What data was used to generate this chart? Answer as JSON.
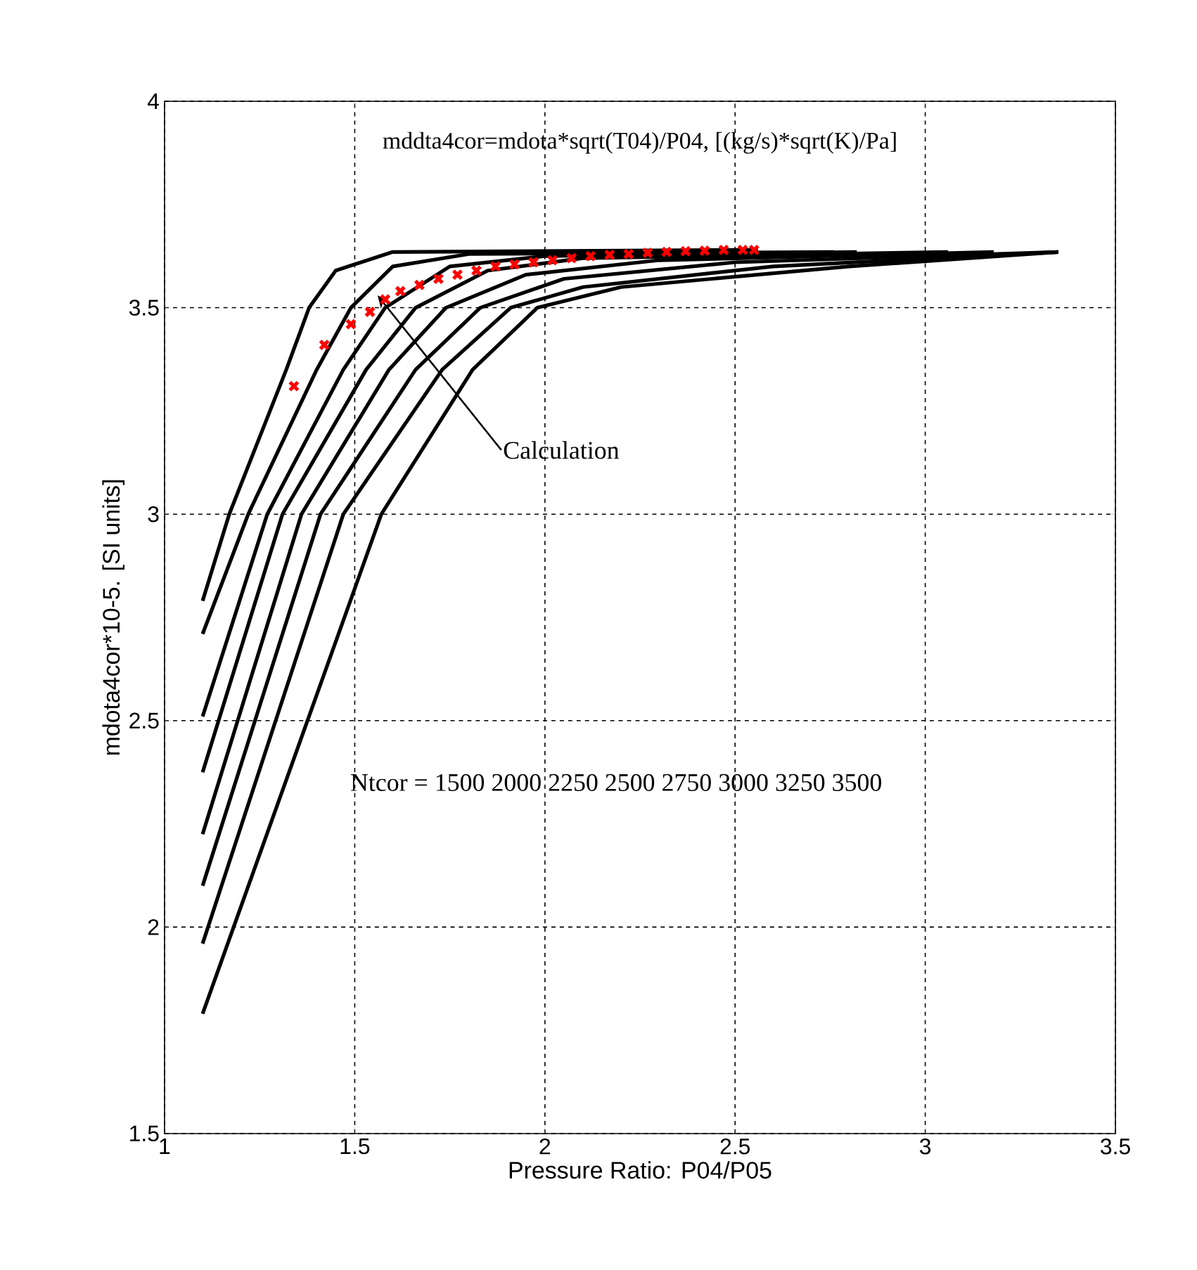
{
  "chart_data": {
    "type": "line",
    "title": "mddta4cor=mdota*sqrt(T04)/P04, [(kg/s)*sqrt(K)/Pa]",
    "xlabel": "Pressure Ratio: P04/P05",
    "ylabel": "mdota4cor*10-5. [SI units]",
    "xlim": [
      1,
      3.5
    ],
    "ylim": [
      1.5,
      4
    ],
    "xticks": [
      1,
      1.5,
      2,
      2.5,
      3,
      3.5
    ],
    "yticks": [
      1.5,
      2,
      2.5,
      3,
      3.5,
      4
    ],
    "grid": true,
    "line_style": "solid",
    "series": [
      {
        "color": "#000000",
        "marker": "none",
        "x": [
          1.1,
          1.17,
          1.32,
          1.38,
          1.45,
          1.6,
          2.56
        ],
        "values": [
          2.79,
          3.0,
          3.35,
          3.5,
          3.59,
          3.635,
          3.64
        ]
      },
      {
        "color": "#000000",
        "marker": "none",
        "x": [
          1.1,
          1.22,
          1.4,
          1.49,
          1.6,
          1.8,
          2.76
        ],
        "values": [
          2.71,
          3.0,
          3.35,
          3.5,
          3.6,
          3.63,
          3.635
        ]
      },
      {
        "color": "#000000",
        "marker": "none",
        "x": [
          1.1,
          1.27,
          1.47,
          1.58,
          1.75,
          2.0,
          2.82
        ],
        "values": [
          2.51,
          3.0,
          3.35,
          3.5,
          3.6,
          3.625,
          3.635
        ]
      },
      {
        "color": "#000000",
        "marker": "none",
        "x": [
          1.1,
          1.31,
          1.53,
          1.66,
          1.85,
          2.1,
          3.06
        ],
        "values": [
          2.375,
          3.0,
          3.35,
          3.5,
          3.59,
          3.62,
          3.635
        ]
      },
      {
        "color": "#000000",
        "marker": "none",
        "x": [
          1.1,
          1.36,
          1.59,
          1.74,
          1.95,
          2.3,
          3.18
        ],
        "values": [
          2.225,
          3.0,
          3.35,
          3.5,
          3.58,
          3.615,
          3.635
        ]
      },
      {
        "color": "#000000",
        "marker": "none",
        "x": [
          1.1,
          1.41,
          1.66,
          1.83,
          2.05,
          2.5,
          3.35
        ],
        "values": [
          2.1,
          3.0,
          3.35,
          3.5,
          3.57,
          3.61,
          3.635
        ]
      },
      {
        "color": "#000000",
        "marker": "none",
        "x": [
          1.1,
          1.47,
          1.73,
          1.91,
          2.1,
          2.6,
          3.35
        ],
        "values": [
          1.96,
          3.0,
          3.35,
          3.5,
          3.55,
          3.6,
          3.635
        ]
      },
      {
        "color": "#000000",
        "marker": "none",
        "x": [
          1.1,
          1.57,
          1.81,
          1.98,
          2.2,
          2.8,
          3.35
        ],
        "values": [
          1.79,
          3.0,
          3.35,
          3.5,
          3.55,
          3.6,
          3.635
        ]
      },
      {
        "type": "scatter",
        "color": "#ff0000",
        "marker": "cross",
        "x": [
          1.34,
          1.42,
          1.49,
          1.54,
          1.58,
          1.62,
          1.67,
          1.72,
          1.77,
          1.82,
          1.87,
          1.92,
          1.97,
          2.02,
          2.07,
          2.12,
          2.17,
          2.22,
          2.27,
          2.32,
          2.37,
          2.42,
          2.47,
          2.52,
          2.55
        ],
        "values": [
          3.31,
          3.41,
          3.46,
          3.49,
          3.52,
          3.54,
          3.555,
          3.57,
          3.58,
          3.59,
          3.6,
          3.605,
          3.61,
          3.615,
          3.62,
          3.625,
          3.628,
          3.63,
          3.633,
          3.635,
          3.637,
          3.638,
          3.64,
          3.64,
          3.64
        ]
      }
    ],
    "annotations": [
      {
        "text": "Calculation",
        "x": 1.56,
        "y": 3.53
      },
      "Ntcor = 1500 2000 2250 2500 2750 3000 3250 3500"
    ]
  }
}
